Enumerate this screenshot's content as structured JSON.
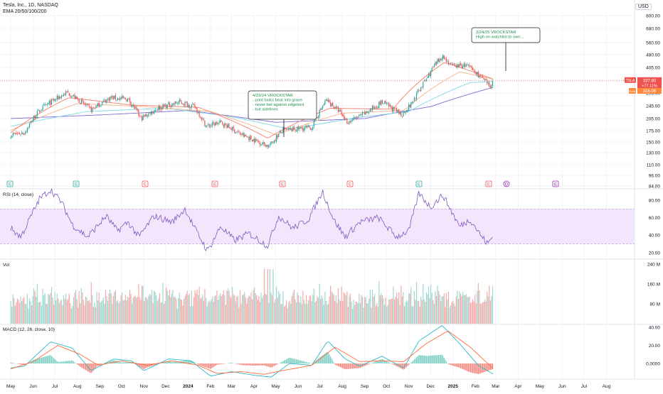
{
  "header": {
    "symbol_line": "Tesla, Inc., 1D, NASDAQ",
    "indicator_line": "EMA 20/50/100/200",
    "currency": "USD"
  },
  "panes": {
    "rsi_label": "RSI (14, close)",
    "vol_label": "Vol",
    "macd_label": "MACD (12, 26, close, 10)"
  },
  "colors": {
    "up": "#26a69a",
    "down": "#ef5350",
    "ema20": "#f57c6c",
    "ema50": "#f5b38a",
    "ema100": "#7fd8e6",
    "ema200": "#7e6ad6",
    "rsi": "#7e57c2",
    "macd": "#2bb7c9",
    "signal": "#ff6d3a",
    "note_text": "#1e8f4e"
  },
  "badges": {
    "last_price": "337.80",
    "change": "+77.11%",
    "ticker": "TSLA",
    "ema_tag": "EMA",
    "ema_value": "316.06"
  },
  "annotations": [
    {
      "lines": [
        "4/23/24 VROCKSTAR",
        "- print looks beat into grave",
        "- never bet against edgelord",
        "- but sidelines"
      ]
    },
    {
      "lines": [
        "2/24/25 VROCKSTAR",
        "High on watchlist to own..."
      ]
    }
  ],
  "event_markers": [
    {
      "type": "E",
      "color": "#26a69a"
    },
    {
      "type": "E",
      "color": "#26a69a"
    },
    {
      "type": "E",
      "color": "#ef5350"
    },
    {
      "type": "E",
      "color": "#ef5350"
    },
    {
      "type": "E",
      "color": "#ef5350"
    },
    {
      "type": "E",
      "color": "#ef5350"
    },
    {
      "type": "E",
      "color": "#26a69a"
    },
    {
      "type": "E",
      "color": "#ef5350"
    },
    {
      "type": "D",
      "color": "#9c27b0"
    },
    {
      "type": "E",
      "color": "#9c27b0"
    }
  ],
  "chart_data": {
    "type": "candlestick",
    "scale": "log",
    "time_axis": [
      "May",
      "Jun",
      "Jul",
      "Aug",
      "Sep",
      "Oct",
      "Nov",
      "Dec",
      "2024",
      "Feb",
      "Mar",
      "Apr",
      "May",
      "Jun",
      "Jul",
      "Aug",
      "Sep",
      "Oct",
      "Nov",
      "Dec",
      "2025",
      "Feb",
      "Mar",
      "Apr",
      "May",
      "Jun",
      "Jul",
      "Aug"
    ],
    "price_ticks": [
      "800.00",
      "680.00",
      "560.00",
      "480.00",
      "405.00",
      "345.00",
      "295.00",
      "245.00",
      "205.00",
      "175.00",
      "150.00",
      "130.00",
      "110.00",
      "96.00",
      "84.00"
    ],
    "price_path": [
      [
        "2023-05-01",
        165
      ],
      [
        "2023-05-20",
        170
      ],
      [
        "2023-06-10",
        230
      ],
      [
        "2023-07-18",
        290
      ],
      [
        "2023-08-20",
        230
      ],
      [
        "2023-09-15",
        270
      ],
      [
        "2023-10-10",
        265
      ],
      [
        "2023-10-28",
        205
      ],
      [
        "2023-11-20",
        235
      ],
      [
        "2023-12-20",
        255
      ],
      [
        "2024-01-10",
        240
      ],
      [
        "2024-01-26",
        185
      ],
      [
        "2024-02-15",
        195
      ],
      [
        "2024-03-15",
        165
      ],
      [
        "2024-04-22",
        142
      ],
      [
        "2024-05-10",
        175
      ],
      [
        "2024-06-20",
        182
      ],
      [
        "2024-07-10",
        262
      ],
      [
        "2024-07-28",
        225
      ],
      [
        "2024-08-08",
        195
      ],
      [
        "2024-09-01",
        218
      ],
      [
        "2024-09-25",
        255
      ],
      [
        "2024-10-22",
        215
      ],
      [
        "2024-11-05",
        250
      ],
      [
        "2024-11-25",
        345
      ],
      [
        "2024-12-17",
        470
      ],
      [
        "2024-12-31",
        410
      ],
      [
        "2025-01-20",
        415
      ],
      [
        "2025-02-07",
        360
      ],
      [
        "2025-02-21",
        310
      ],
      [
        "2025-02-26",
        337.8
      ]
    ],
    "ema_paths": {
      "ema20": [
        [
          "2023-05-01",
          170
        ],
        [
          "2023-07-20",
          270
        ],
        [
          "2023-10-15",
          245
        ],
        [
          "2024-01-15",
          238
        ],
        [
          "2024-04-20",
          158
        ],
        [
          "2024-07-15",
          235
        ],
        [
          "2024-10-10",
          232
        ],
        [
          "2024-12-20",
          430
        ],
        [
          "2025-02-26",
          345
        ]
      ],
      "ema50": [
        [
          "2023-05-01",
          175
        ],
        [
          "2023-08-01",
          250
        ],
        [
          "2023-11-01",
          240
        ],
        [
          "2024-02-01",
          225
        ],
        [
          "2024-05-01",
          165
        ],
        [
          "2024-08-01",
          220
        ],
        [
          "2024-10-25",
          228
        ],
        [
          "2025-01-10",
          380
        ],
        [
          "2025-02-26",
          345
        ]
      ],
      "ema100": [
        [
          "2023-05-01",
          185
        ],
        [
          "2023-08-15",
          225
        ],
        [
          "2023-12-01",
          235
        ],
        [
          "2024-03-01",
          210
        ],
        [
          "2024-05-20",
          178
        ],
        [
          "2024-09-01",
          210
        ],
        [
          "2024-11-01",
          225
        ],
        [
          "2025-01-25",
          330
        ],
        [
          "2025-02-26",
          335
        ]
      ],
      "ema200": [
        [
          "2023-05-01",
          205
        ],
        [
          "2023-09-01",
          215
        ],
        [
          "2024-01-01",
          228
        ],
        [
          "2024-05-01",
          195
        ],
        [
          "2024-09-01",
          205
        ],
        [
          "2024-12-01",
          240
        ],
        [
          "2025-02-26",
          310
        ]
      ]
    },
    "rsi": {
      "ticks": [
        "80.00",
        "60.00",
        "40.00",
        "20.00"
      ],
      "band": [
        30,
        70
      ],
      "series": [
        [
          "2023-05-01",
          48
        ],
        [
          "2023-05-15",
          38
        ],
        [
          "2023-06-10",
          82
        ],
        [
          "2023-06-25",
          92
        ],
        [
          "2023-07-10",
          78
        ],
        [
          "2023-07-25",
          52
        ],
        [
          "2023-08-15",
          38
        ],
        [
          "2023-09-10",
          62
        ],
        [
          "2023-09-25",
          45
        ],
        [
          "2023-10-10",
          55
        ],
        [
          "2023-10-25",
          38
        ],
        [
          "2023-11-15",
          62
        ],
        [
          "2023-12-10",
          55
        ],
        [
          "2023-12-28",
          70
        ],
        [
          "2024-01-10",
          48
        ],
        [
          "2024-01-28",
          22
        ],
        [
          "2024-02-15",
          50
        ],
        [
          "2024-03-05",
          34
        ],
        [
          "2024-03-25",
          42
        ],
        [
          "2024-04-20",
          28
        ],
        [
          "2024-05-05",
          62
        ],
        [
          "2024-05-25",
          48
        ],
        [
          "2024-06-15",
          58
        ],
        [
          "2024-07-05",
          90
        ],
        [
          "2024-07-20",
          58
        ],
        [
          "2024-08-05",
          38
        ],
        [
          "2024-08-25",
          55
        ],
        [
          "2024-09-20",
          60
        ],
        [
          "2024-10-15",
          38
        ],
        [
          "2024-11-01",
          45
        ],
        [
          "2024-11-15",
          88
        ],
        [
          "2024-12-01",
          72
        ],
        [
          "2024-12-18",
          86
        ],
        [
          "2025-01-10",
          50
        ],
        [
          "2025-01-25",
          58
        ],
        [
          "2025-02-10",
          38
        ],
        [
          "2025-02-18",
          30
        ],
        [
          "2025-02-26",
          40
        ]
      ]
    },
    "volume": {
      "ticks": [
        "240 M",
        "160 M",
        "80 M"
      ],
      "ylim": [
        0,
        240
      ]
    },
    "macd": {
      "ticks": [
        "40.00",
        "20.00",
        "0.0000"
      ],
      "macd_line": [
        [
          "2023-05-01",
          -5
        ],
        [
          "2023-05-20",
          -3
        ],
        [
          "2023-06-25",
          24
        ],
        [
          "2023-07-25",
          17
        ],
        [
          "2023-08-20",
          -8
        ],
        [
          "2023-09-20",
          5
        ],
        [
          "2023-10-15",
          3
        ],
        [
          "2023-11-01",
          -8
        ],
        [
          "2023-12-05",
          5
        ],
        [
          "2024-01-05",
          3
        ],
        [
          "2024-02-01",
          -14
        ],
        [
          "2024-03-01",
          -9
        ],
        [
          "2024-04-01",
          -13
        ],
        [
          "2024-04-25",
          -15
        ],
        [
          "2024-05-20",
          0
        ],
        [
          "2024-06-20",
          -2
        ],
        [
          "2024-07-12",
          25
        ],
        [
          "2024-08-05",
          5
        ],
        [
          "2024-08-25",
          -3
        ],
        [
          "2024-09-25",
          8
        ],
        [
          "2024-10-25",
          -5
        ],
        [
          "2024-11-15",
          25
        ],
        [
          "2024-12-17",
          42
        ],
        [
          "2025-01-10",
          22
        ],
        [
          "2025-02-05",
          -2
        ],
        [
          "2025-02-26",
          -12
        ]
      ],
      "signal_line": [
        [
          "2023-05-01",
          -6
        ],
        [
          "2023-06-01",
          2
        ],
        [
          "2023-07-05",
          20
        ],
        [
          "2023-08-05",
          10
        ],
        [
          "2023-08-30",
          -2
        ],
        [
          "2023-10-01",
          3
        ],
        [
          "2023-11-05",
          -2
        ],
        [
          "2023-12-10",
          3
        ],
        [
          "2024-01-15",
          -2
        ],
        [
          "2024-02-10",
          -11
        ],
        [
          "2024-03-15",
          -9
        ],
        [
          "2024-04-15",
          -12
        ],
        [
          "2024-05-10",
          -8
        ],
        [
          "2024-06-20",
          -2
        ],
        [
          "2024-07-22",
          18
        ],
        [
          "2024-08-25",
          2
        ],
        [
          "2024-09-25",
          3
        ],
        [
          "2024-10-25",
          2
        ],
        [
          "2024-11-25",
          22
        ],
        [
          "2024-12-25",
          36
        ],
        [
          "2025-01-25",
          18
        ],
        [
          "2025-02-26",
          -6
        ]
      ]
    }
  }
}
